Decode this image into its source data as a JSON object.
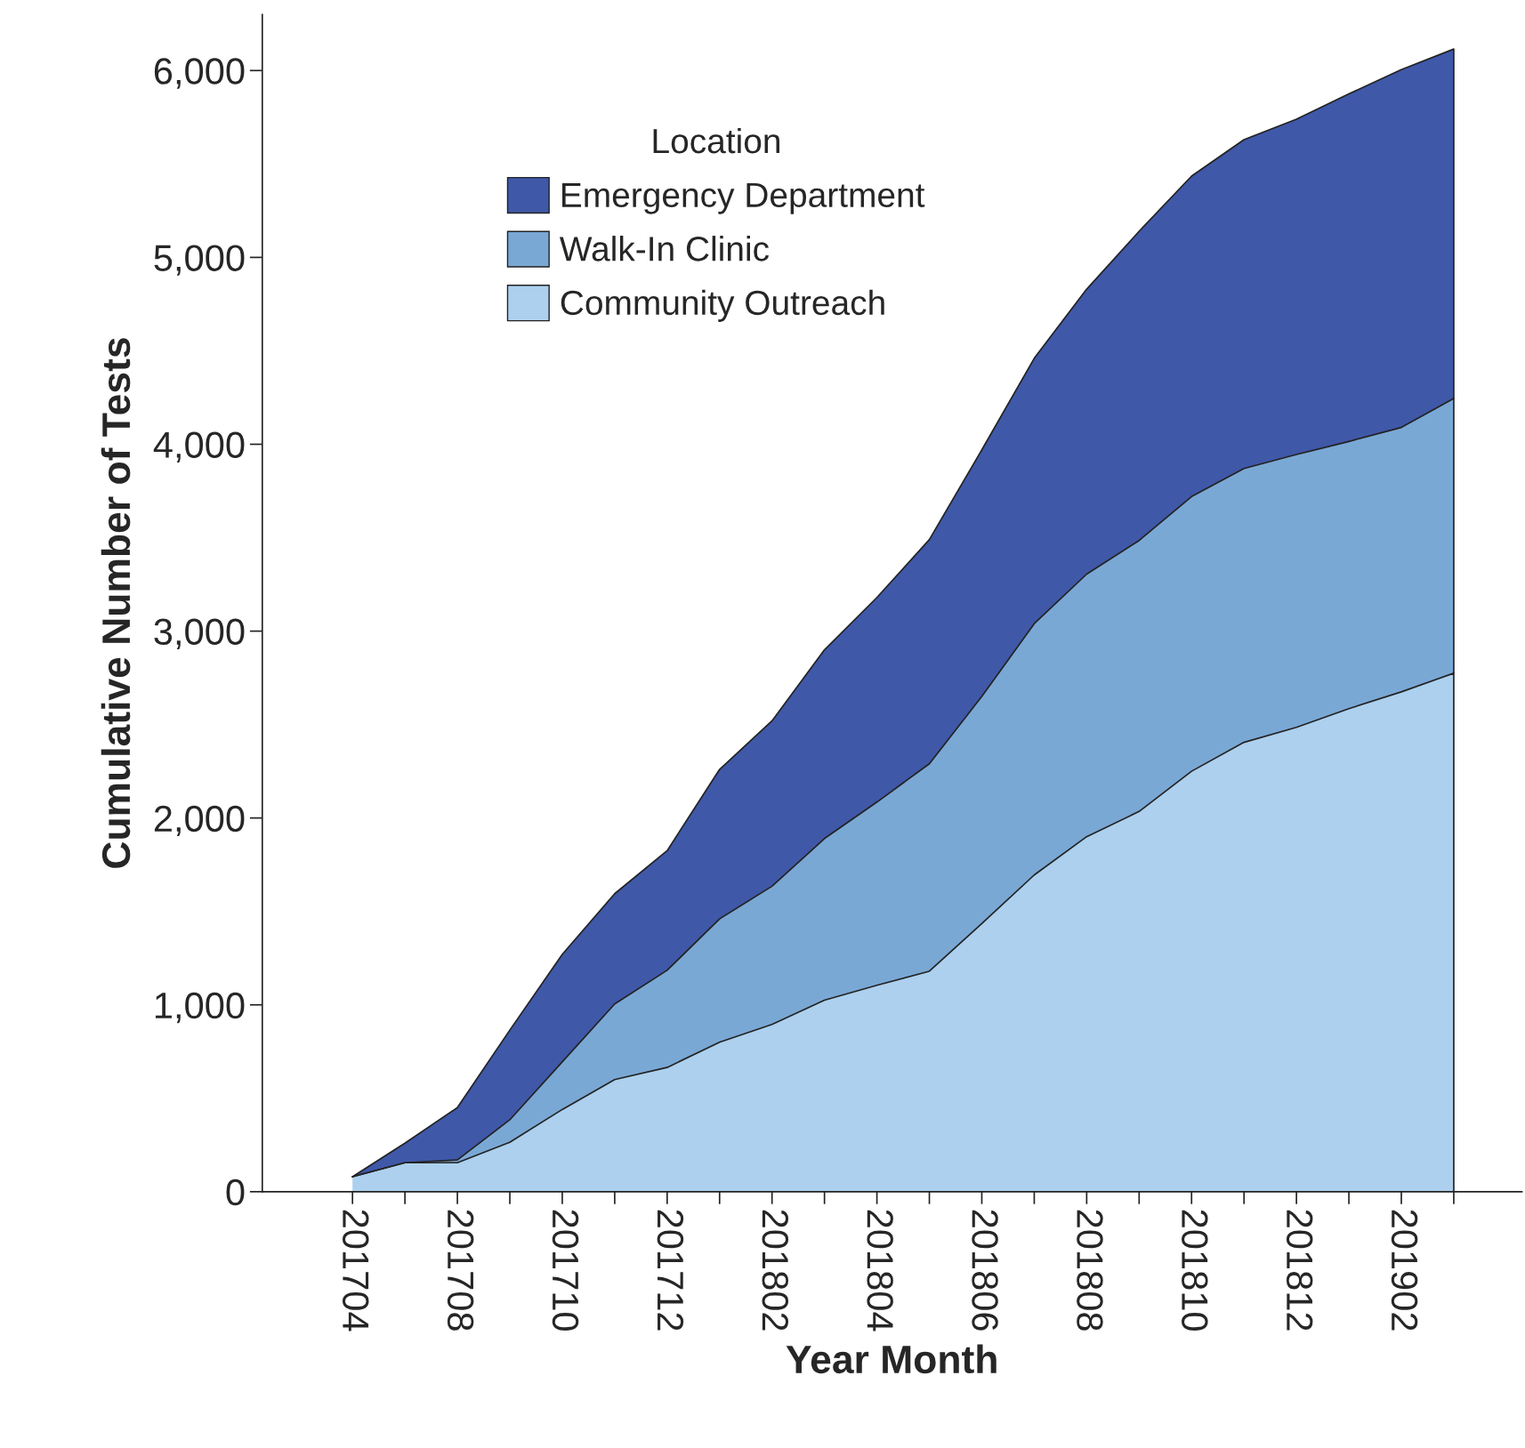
{
  "chart_data": {
    "type": "area",
    "stacked": true,
    "xlabel": "Year Month",
    "ylabel": "Cumulative Number of Tests",
    "legend_title": "Location",
    "legend": "top left",
    "grid": false,
    "categories": [
      "201704",
      null,
      "201708",
      null,
      "201710",
      null,
      "201712",
      null,
      "201802",
      null,
      "201804",
      null,
      "201806",
      null,
      "201808",
      null,
      "201810",
      null,
      "201812",
      null,
      "201902",
      null
    ],
    "series": [
      {
        "name": "Community Outreach",
        "color": "#acd0ee",
        "values": [
          80,
          155,
          155,
          265,
          440,
          600,
          665,
          800,
          895,
          1025,
          1105,
          1180,
          1435,
          1695,
          1900,
          2035,
          2250,
          2405,
          2485,
          2585,
          2675,
          2775
        ]
      },
      {
        "name": "Walk-In Clinic",
        "color": "#7aa8d5",
        "values": [
          0,
          0,
          15,
          120,
          255,
          405,
          520,
          660,
          740,
          865,
          980,
          1110,
          1215,
          1345,
          1405,
          1450,
          1470,
          1465,
          1460,
          1430,
          1415,
          1470
        ]
      },
      {
        "name": "Emergency Department",
        "color": "#3f58a8",
        "values": [
          0,
          105,
          280,
          480,
          575,
          590,
          640,
          800,
          885,
          1010,
          1095,
          1200,
          1320,
          1420,
          1525,
          1655,
          1715,
          1760,
          1795,
          1860,
          1915,
          1870
        ]
      }
    ],
    "ylim": [
      0,
      6300
    ],
    "yticks": [
      0,
      {
        "value": 1000,
        "label": "1,000"
      },
      {
        "value": 2000,
        "label": "2,000"
      },
      {
        "value": 3000,
        "label": "3,000"
      },
      {
        "value": 4000,
        "label": "4,000"
      },
      {
        "value": 5000,
        "label": "5,000"
      },
      {
        "value": 6000,
        "label": "6,000"
      }
    ]
  }
}
